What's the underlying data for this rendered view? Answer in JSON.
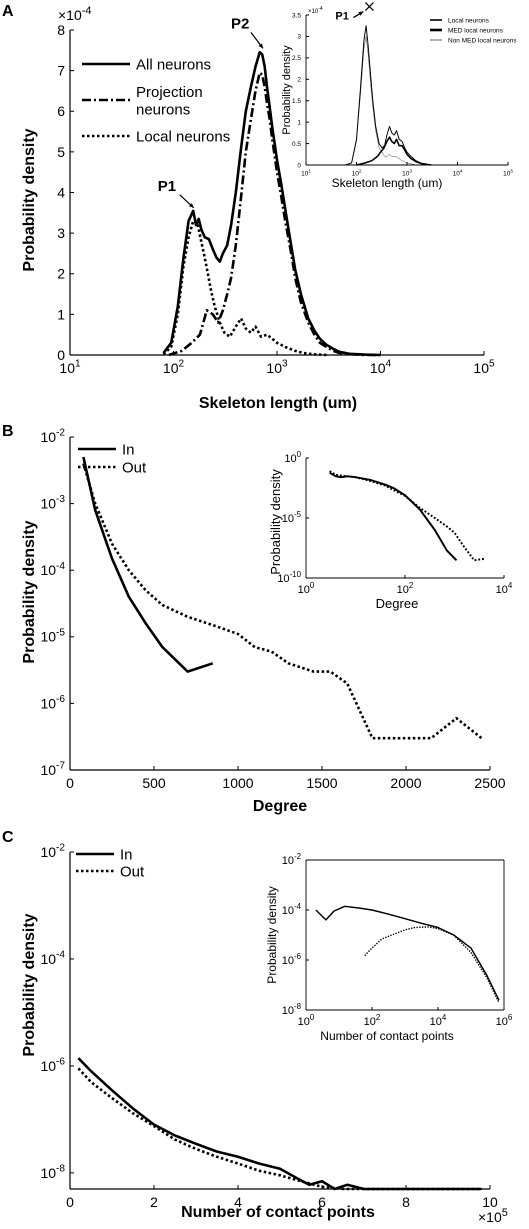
{
  "panels": {
    "A": {
      "letter": "A",
      "xlabel": "Skeleton length (um)",
      "ylabel": "Probability density",
      "multiplier": "×10",
      "multiplier_exp": "-4"
    },
    "B": {
      "letter": "B",
      "xlabel": "Degree",
      "ylabel": "Probability density"
    },
    "C": {
      "letter": "C",
      "xlabel": "Number of contact points",
      "ylabel": "Probability density",
      "multiplier": "×10",
      "multiplier_exp": "5"
    }
  },
  "chart_data": [
    {
      "id": "A-main",
      "type": "line",
      "xscale": "log",
      "xlim": [
        10,
        100000
      ],
      "ylim": [
        0,
        8
      ],
      "y_multiplier": "1e-4",
      "x_ticks": [
        {
          "base": "10",
          "exp": "1"
        },
        {
          "base": "10",
          "exp": "2"
        },
        {
          "base": "10",
          "exp": "3"
        },
        {
          "base": "10",
          "exp": "4"
        },
        {
          "base": "10",
          "exp": "5"
        }
      ],
      "y_ticks": [
        "0",
        "1",
        "2",
        "3",
        "4",
        "5",
        "6",
        "7",
        "8"
      ],
      "xlabel": "Skeleton length (um)",
      "ylabel": "Probability density",
      "legend_position": "top-left",
      "annotations": [
        {
          "text": "P1",
          "x": 150,
          "y": 3.55
        },
        {
          "text": "P2",
          "x": 700,
          "y": 7.45
        }
      ],
      "series": [
        {
          "name": "All neurons",
          "style": "solid",
          "x": [
            80,
            95,
            110,
            125,
            140,
            155,
            165,
            175,
            185,
            200,
            220,
            240,
            260,
            280,
            300,
            330,
            360,
            400,
            450,
            500,
            560,
            620,
            680,
            720,
            760,
            800,
            850,
            900,
            950,
            1000,
            1100,
            1200,
            1350,
            1500,
            1700,
            2000,
            2300,
            2600,
            3000,
            3500,
            4000,
            5000,
            7000,
            10000
          ],
          "y": [
            0.05,
            0.3,
            1.2,
            2.4,
            3.3,
            3.55,
            3.2,
            3.35,
            3.1,
            2.9,
            2.85,
            2.6,
            2.4,
            2.3,
            2.5,
            2.7,
            3.2,
            4.0,
            5.1,
            6.0,
            6.6,
            7.1,
            7.45,
            7.4,
            7.1,
            6.6,
            6.1,
            5.6,
            5.2,
            4.8,
            4.2,
            3.6,
            2.8,
            2.1,
            1.5,
            0.9,
            0.6,
            0.4,
            0.25,
            0.15,
            0.08,
            0.03,
            0.01,
            0.0
          ]
        },
        {
          "name": "Projection neurons",
          "style": "dashdot",
          "x": [
            90,
            120,
            150,
            180,
            210,
            240,
            270,
            300,
            330,
            360,
            400,
            450,
            500,
            560,
            620,
            680,
            720,
            760,
            800,
            850,
            900,
            950,
            1000,
            1100,
            1200,
            1350,
            1500,
            1700,
            2000,
            2300,
            2600,
            3000,
            3500,
            4000,
            5000,
            7000,
            10000
          ],
          "y": [
            0.0,
            0.1,
            0.3,
            0.5,
            1.1,
            1.0,
            0.8,
            1.1,
            1.5,
            1.9,
            2.7,
            3.9,
            5.0,
            5.8,
            6.5,
            6.95,
            6.9,
            6.6,
            6.2,
            5.8,
            5.3,
            4.9,
            4.5,
            3.9,
            3.3,
            2.6,
            1.9,
            1.3,
            0.8,
            0.5,
            0.3,
            0.2,
            0.1,
            0.05,
            0.02,
            0.0,
            0.0
          ]
        },
        {
          "name": "Local neurons",
          "style": "dotted",
          "x": [
            80,
            95,
            110,
            125,
            140,
            155,
            170,
            185,
            200,
            215,
            230,
            250,
            280,
            310,
            350,
            400,
            450,
            500,
            560,
            620,
            700,
            800,
            900,
            1000,
            1200,
            1500,
            1800,
            2200,
            3000
          ],
          "y": [
            0.02,
            0.2,
            1.0,
            2.2,
            2.9,
            3.3,
            3.25,
            2.8,
            2.4,
            2.0,
            1.6,
            1.2,
            0.8,
            0.55,
            0.45,
            0.7,
            0.9,
            0.65,
            0.55,
            0.7,
            0.45,
            0.5,
            0.4,
            0.3,
            0.2,
            0.1,
            0.05,
            0.02,
            0.0
          ]
        }
      ]
    },
    {
      "id": "A-inset",
      "type": "line",
      "xscale": "log",
      "xlim": [
        10,
        100000
      ],
      "ylim": [
        0,
        3.5
      ],
      "y_multiplier": "1e-4",
      "x_ticks": [
        {
          "base": "10",
          "exp": "1"
        },
        {
          "base": "10",
          "exp": "2"
        },
        {
          "base": "10",
          "exp": "3"
        },
        {
          "base": "10",
          "exp": "4"
        },
        {
          "base": "10",
          "exp": "5"
        }
      ],
      "y_ticks": [
        "0",
        "0.5",
        "1",
        "1.5",
        "2",
        "2.5",
        "3",
        "3.5"
      ],
      "xlabel": "Skeleton length (um)",
      "ylabel": "Probability density",
      "legend_position": "top-right",
      "annotations": [
        {
          "text": "P1",
          "x": 150,
          "y": 3.3
        }
      ],
      "series": [
        {
          "name": "Local neurons",
          "style": "solid-thick",
          "x": [
            60,
            80,
            100,
            120,
            140,
            155,
            170,
            190,
            210,
            240,
            280,
            320,
            360,
            400,
            450,
            500,
            560,
            620,
            700,
            800,
            900,
            1000,
            1200,
            1500,
            2000,
            3000
          ],
          "y": [
            0.0,
            0.05,
            0.6,
            1.8,
            2.9,
            3.25,
            2.8,
            2.1,
            1.5,
            0.9,
            0.5,
            0.4,
            0.45,
            0.7,
            0.9,
            0.75,
            0.7,
            0.8,
            0.6,
            0.55,
            0.4,
            0.3,
            0.2,
            0.1,
            0.03,
            0.0
          ]
        },
        {
          "name": "MED local neurons",
          "style": "solid",
          "x": [
            100,
            150,
            200,
            260,
            300,
            350,
            400,
            450,
            500,
            560,
            620,
            700,
            800,
            900,
            1000,
            1200,
            1500,
            2000,
            3000
          ],
          "y": [
            0.0,
            0.05,
            0.1,
            0.2,
            0.3,
            0.4,
            0.55,
            0.65,
            0.55,
            0.5,
            0.6,
            0.45,
            0.45,
            0.35,
            0.25,
            0.15,
            0.08,
            0.03,
            0.0
          ]
        },
        {
          "name": "Non MED local neurons",
          "style": "solid-thin",
          "x": [
            60,
            80,
            100,
            120,
            140,
            155,
            170,
            190,
            210,
            240,
            280,
            320,
            360,
            400,
            450,
            500,
            600,
            800,
            1000,
            1500
          ],
          "y": [
            0.0,
            0.05,
            0.55,
            1.65,
            2.7,
            3.0,
            2.6,
            1.9,
            1.35,
            0.8,
            0.4,
            0.3,
            0.2,
            0.2,
            0.25,
            0.2,
            0.2,
            0.1,
            0.05,
            0.0
          ]
        }
      ]
    },
    {
      "id": "B-main",
      "type": "line",
      "yscale": "log",
      "xlim": [
        0,
        2500
      ],
      "ylim": [
        1e-07,
        0.01
      ],
      "x_ticks": [
        "0",
        "500",
        "1000",
        "1500",
        "2000",
        "2500"
      ],
      "y_ticks": [
        {
          "base": "10",
          "exp": "-7"
        },
        {
          "base": "10",
          "exp": "-6"
        },
        {
          "base": "10",
          "exp": "-5"
        },
        {
          "base": "10",
          "exp": "-4"
        },
        {
          "base": "10",
          "exp": "-3"
        },
        {
          "base": "10",
          "exp": "-2"
        }
      ],
      "xlabel": "Degree",
      "ylabel": "Probability density",
      "legend_position": "top-left",
      "series": [
        {
          "name": "In",
          "style": "solid",
          "x": [
            80,
            150,
            250,
            350,
            450,
            550,
            700,
            850
          ],
          "y": [
            0.005,
            0.0008,
            0.00015,
            4e-05,
            1.6e-05,
            7e-06,
            3e-06,
            4e-06
          ]
        },
        {
          "name": "Out",
          "style": "dotted",
          "x": [
            80,
            150,
            250,
            350,
            450,
            550,
            700,
            850,
            1000,
            1100,
            1200,
            1300,
            1450,
            1550,
            1650,
            1800,
            1900,
            2000,
            2150,
            2300,
            2450
          ],
          "y": [
            0.004,
            0.001,
            0.00025,
            0.0001,
            5e-05,
            3e-05,
            2e-05,
            1.5e-05,
            1.1e-05,
            7e-06,
            6e-06,
            4e-06,
            3e-06,
            3e-06,
            2e-06,
            3e-07,
            3e-07,
            3e-07,
            3e-07,
            6e-07,
            3e-07
          ]
        }
      ]
    },
    {
      "id": "B-inset",
      "type": "line",
      "xscale": "log",
      "yscale": "log",
      "xlim": [
        1,
        10000
      ],
      "ylim": [
        1e-10,
        1
      ],
      "x_ticks": [
        {
          "base": "10",
          "exp": "0"
        },
        {
          "base": "10",
          "exp": "2"
        },
        {
          "base": "10",
          "exp": "4"
        }
      ],
      "y_ticks": [
        {
          "base": "10",
          "exp": "-10"
        },
        {
          "base": "10",
          "exp": "-5"
        },
        {
          "base": "10",
          "exp": "0"
        }
      ],
      "xlabel": "Degree",
      "ylabel": "Probability density",
      "series": [
        {
          "name": "In",
          "style": "solid",
          "x": [
            3,
            4,
            5,
            7,
            10,
            20,
            40,
            60,
            100,
            200,
            400,
            700,
            1100
          ],
          "y": [
            0.06,
            0.03,
            0.025,
            0.03,
            0.025,
            0.015,
            0.006,
            0.003,
            0.0008,
            5e-05,
            1e-06,
            2e-08,
            3e-09
          ]
        },
        {
          "name": "Out",
          "style": "dotted",
          "x": [
            3,
            4,
            5,
            7,
            10,
            20,
            40,
            60,
            100,
            200,
            400,
            700,
            1000,
            1500,
            2500,
            4000
          ],
          "y": [
            0.08,
            0.04,
            0.035,
            0.03,
            0.025,
            0.012,
            0.005,
            0.002,
            0.0007,
            7e-05,
            1e-05,
            2e-06,
            6e-07,
            5e-08,
            3e-09,
            4e-09
          ]
        }
      ]
    },
    {
      "id": "C-main",
      "type": "line",
      "yscale": "log",
      "xlim": [
        0,
        10
      ],
      "ylim": [
        5e-09,
        0.01
      ],
      "x_multiplier": "1e5",
      "x_ticks": [
        "0",
        "2",
        "4",
        "6",
        "8",
        "10"
      ],
      "y_ticks": [
        {
          "base": "10",
          "exp": "-8"
        },
        {
          "base": "10",
          "exp": "-6"
        },
        {
          "base": "10",
          "exp": "-4"
        },
        {
          "base": "10",
          "exp": "-2"
        }
      ],
      "xlabel": "Number of contact points",
      "ylabel": "Probability density",
      "legend_position": "top-left",
      "series": [
        {
          "name": "In",
          "style": "solid",
          "x": [
            0.2,
            0.5,
            1.0,
            1.5,
            2.0,
            2.5,
            3.0,
            3.5,
            4.0,
            4.5,
            5.0,
            5.4,
            5.7,
            6.0,
            6.3,
            6.6,
            7.0,
            7.3,
            7.6,
            8.0,
            8.4,
            8.8,
            9.2,
            9.5,
            9.8
          ],
          "y": [
            1.4e-06,
            8e-07,
            3.5e-07,
            1.6e-07,
            8e-08,
            5e-08,
            3.5e-08,
            2.5e-08,
            2e-08,
            1.5e-08,
            1.2e-08,
            8e-09,
            6e-09,
            7e-09,
            5e-09,
            6e-09,
            4.5e-09,
            2.5e-09,
            4e-09,
            3e-09,
            3.5e-09,
            3e-09,
            4e-09,
            2e-09,
            5e-09
          ]
        },
        {
          "name": "Out",
          "style": "dotted",
          "x": [
            0.2,
            0.5,
            1.0,
            1.5,
            2.0,
            2.5,
            3.0,
            3.5,
            4.0,
            4.5,
            5.0,
            5.5,
            6.0,
            6.5,
            7.0,
            7.5,
            8.0,
            8.5,
            9.0,
            9.5,
            9.8
          ],
          "y": [
            9e-07,
            5e-07,
            2.5e-07,
            1.3e-07,
            7.5e-08,
            4.2e-08,
            2.8e-08,
            2e-08,
            1.5e-08,
            1.1e-08,
            9e-09,
            7e-09,
            5.5e-09,
            4.5e-09,
            4e-09,
            3.8e-09,
            4e-09,
            3.5e-09,
            4.5e-09,
            3e-09,
            4.2e-09
          ]
        }
      ]
    },
    {
      "id": "C-inset",
      "type": "line",
      "xscale": "log",
      "yscale": "log",
      "xlim": [
        1,
        1000000
      ],
      "ylim": [
        1e-08,
        0.01
      ],
      "x_ticks": [
        {
          "base": "10",
          "exp": "0"
        },
        {
          "base": "10",
          "exp": "2"
        },
        {
          "base": "10",
          "exp": "4"
        },
        {
          "base": "10",
          "exp": "6"
        }
      ],
      "y_ticks": [
        {
          "base": "10",
          "exp": "-8"
        },
        {
          "base": "10",
          "exp": "-6"
        },
        {
          "base": "10",
          "exp": "-4"
        },
        {
          "base": "10",
          "exp": "-2"
        }
      ],
      "xlabel": "Number of contact points",
      "ylabel": "Probability density",
      "series": [
        {
          "name": "In",
          "style": "solid",
          "x": [
            2,
            4,
            7,
            15,
            40,
            100,
            300,
            1000,
            3000,
            10000,
            30000,
            100000,
            300000,
            700000
          ],
          "y": [
            0.0001,
            4e-05,
            9e-05,
            0.00014,
            0.00012,
            0.0001,
            7e-05,
            4.5e-05,
            3e-05,
            2e-05,
            1e-05,
            3e-06,
            2.5e-07,
            2.5e-08
          ]
        },
        {
          "name": "Out",
          "style": "dotted",
          "x": [
            60,
            100,
            200,
            400,
            1000,
            2000,
            5000,
            10000,
            30000,
            100000,
            300000,
            700000
          ],
          "y": [
            1.5e-06,
            3e-06,
            7e-06,
            1e-05,
            1.6e-05,
            2e-05,
            2.1e-05,
            1.8e-05,
            1e-05,
            2e-06,
            2e-07,
            2e-08
          ]
        }
      ]
    }
  ]
}
